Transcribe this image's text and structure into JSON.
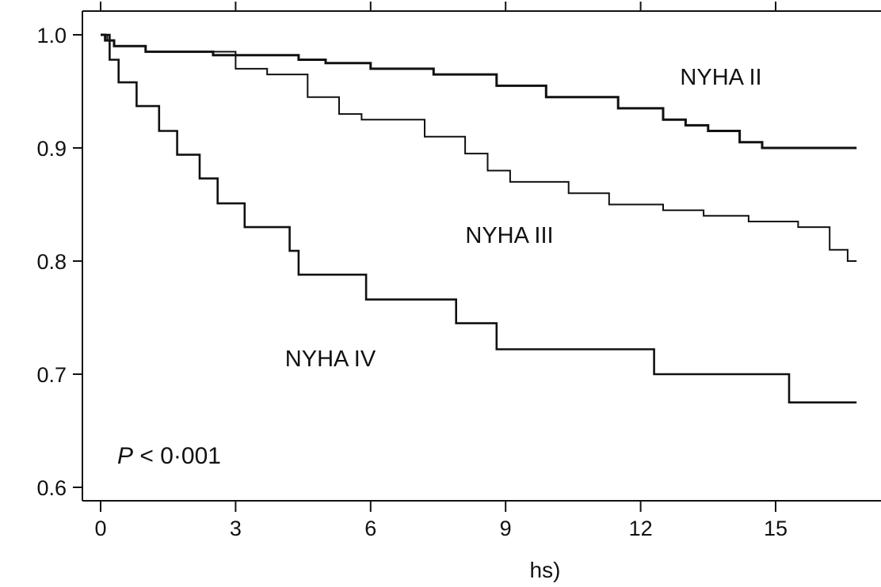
{
  "chart_data": {
    "type": "line",
    "title": "",
    "xlabel": "hs)",
    "ylabel": "",
    "xlim": [
      0,
      17
    ],
    "ylim": [
      0.6,
      1.0
    ],
    "x_ticks": [
      0,
      3,
      6,
      9,
      12,
      15
    ],
    "x_tick_labels": [
      "0",
      "3",
      "6",
      "9",
      "12",
      "15"
    ],
    "y_ticks": [
      0.6,
      0.7,
      0.8,
      0.9,
      1.0
    ],
    "y_tick_labels": [
      "0.6",
      "0.7",
      "0.8",
      "0.9",
      "1.0"
    ],
    "grid": false,
    "step": true,
    "annotation": {
      "italic": "P",
      "rest": " < 0·001"
    },
    "series": [
      {
        "name": "NYHA II",
        "x": [
          0,
          0.1,
          0.3,
          1.0,
          2.5,
          4.4,
          5.0,
          6.0,
          7.4,
          8.8,
          9.9,
          11.5,
          12.5,
          13.0,
          13.5,
          14.2,
          14.7,
          16.8
        ],
        "y": [
          1.0,
          0.995,
          0.99,
          0.985,
          0.982,
          0.978,
          0.975,
          0.97,
          0.965,
          0.955,
          0.945,
          0.935,
          0.925,
          0.92,
          0.915,
          0.905,
          0.9,
          0.9
        ]
      },
      {
        "name": "NYHA III",
        "x": [
          0,
          0.15,
          0.3,
          1.0,
          3.0,
          3.7,
          4.6,
          5.3,
          5.8,
          7.2,
          8.1,
          8.6,
          9.1,
          10.4,
          11.3,
          12.5,
          13.4,
          14.4,
          15.5,
          16.2,
          16.6,
          16.8
        ],
        "y": [
          1.0,
          0.995,
          0.99,
          0.985,
          0.97,
          0.965,
          0.945,
          0.93,
          0.925,
          0.91,
          0.895,
          0.88,
          0.87,
          0.86,
          0.85,
          0.845,
          0.84,
          0.835,
          0.83,
          0.81,
          0.8,
          0.8
        ]
      },
      {
        "name": "NYHA IV",
        "x": [
          0,
          0.2,
          0.4,
          0.8,
          1.3,
          1.7,
          2.2,
          2.6,
          3.2,
          4.2,
          4.4,
          5.9,
          7.9,
          8.8,
          12.3,
          15.3,
          16.8
        ],
        "y": [
          1.0,
          0.978,
          0.958,
          0.937,
          0.915,
          0.894,
          0.873,
          0.851,
          0.83,
          0.809,
          0.788,
          0.766,
          0.745,
          0.722,
          0.7,
          0.675,
          0.675
        ]
      }
    ]
  }
}
